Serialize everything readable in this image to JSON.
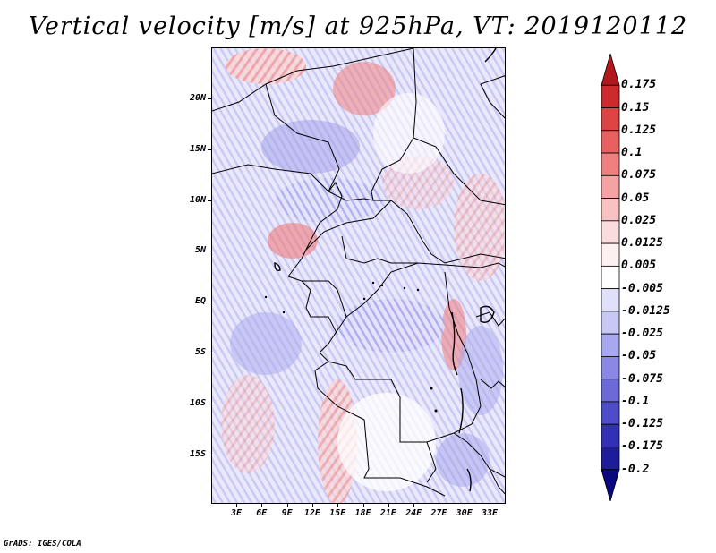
{
  "title": "Vertical velocity [m/s] at 925hPa, VT: 2019120112",
  "footer": "GrADS: IGES/COLA",
  "map": {
    "lat_labels": [
      "20N",
      "15N",
      "10N",
      "5N",
      "EQ",
      "5S",
      "10S",
      "15S"
    ],
    "lon_labels": [
      "3E",
      "6E",
      "9E",
      "12E",
      "15E",
      "18E",
      "21E",
      "24E",
      "27E",
      "30E",
      "33E"
    ]
  },
  "colorbar": {
    "labels": [
      "0.175",
      "0.15",
      "0.125",
      "0.1",
      "0.075",
      "0.05",
      "0.025",
      "0.0125",
      "0.005",
      "-0.005",
      "-0.0125",
      "-0.025",
      "-0.05",
      "-0.075",
      "-0.1",
      "-0.125",
      "-0.175",
      "-0.2"
    ],
    "colors": [
      "#b2181b",
      "#cc2a2c",
      "#dd4444",
      "#e86060",
      "#f08080",
      "#f5a2a2",
      "#f8c2c2",
      "#fbdcdc",
      "#fdf0f0",
      "#ffffff",
      "#e0e0fb",
      "#c8c8f4",
      "#a8a8ee",
      "#8a88e4",
      "#6c6ad8",
      "#4e4cc8",
      "#3230b4",
      "#1e1c9a",
      "#0a0880"
    ]
  }
}
